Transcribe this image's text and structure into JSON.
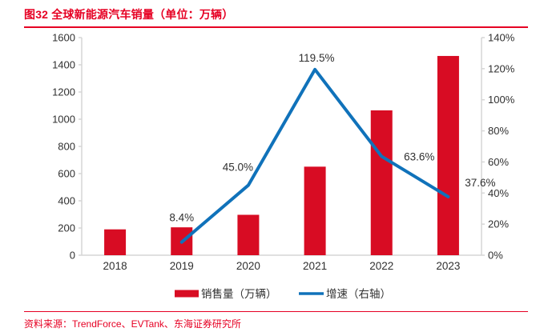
{
  "header": {
    "title": "图32  全球新能源汽车销量（单位：万辆）"
  },
  "footer": {
    "source": "资料来源：TrendForce、EVTank、东海证券研究所"
  },
  "colors": {
    "accent_red": "#e60023",
    "bar_red": "#d80c23",
    "line_blue": "#1072ba",
    "axis_line": "#d6d6d6",
    "text_dark": "#303030"
  },
  "chart_data": {
    "type": "bar+line",
    "title": "图32 全球新能源汽车销量（单位：万辆）",
    "categories": [
      "2018",
      "2019",
      "2020",
      "2021",
      "2022",
      "2023"
    ],
    "series": [
      {
        "name": "销售量（万辆）",
        "type": "bar",
        "axis": "left",
        "values": [
          190,
          205,
          297,
          651,
          1065,
          1465
        ]
      },
      {
        "name": "增速（右轴）",
        "type": "line",
        "axis": "right",
        "values": [
          null,
          8.4,
          45.0,
          119.5,
          63.6,
          37.6
        ],
        "labels": [
          "",
          "8.4%",
          "45.0%",
          "119.5%",
          "63.6%",
          "37.6%"
        ]
      }
    ],
    "left_axis": {
      "min": 0,
      "max": 1600,
      "step": 200,
      "ticks": [
        "0",
        "200",
        "400",
        "600",
        "800",
        "1000",
        "1200",
        "1400",
        "1600"
      ]
    },
    "right_axis": {
      "min": 0,
      "max": 140,
      "step": 20,
      "ticks": [
        "0%",
        "20%",
        "40%",
        "60%",
        "80%",
        "100%",
        "120%",
        "140%"
      ]
    },
    "legend": [
      "销售量（万辆）",
      "增速（右轴）"
    ],
    "legend_position": "bottom",
    "grid": false
  }
}
